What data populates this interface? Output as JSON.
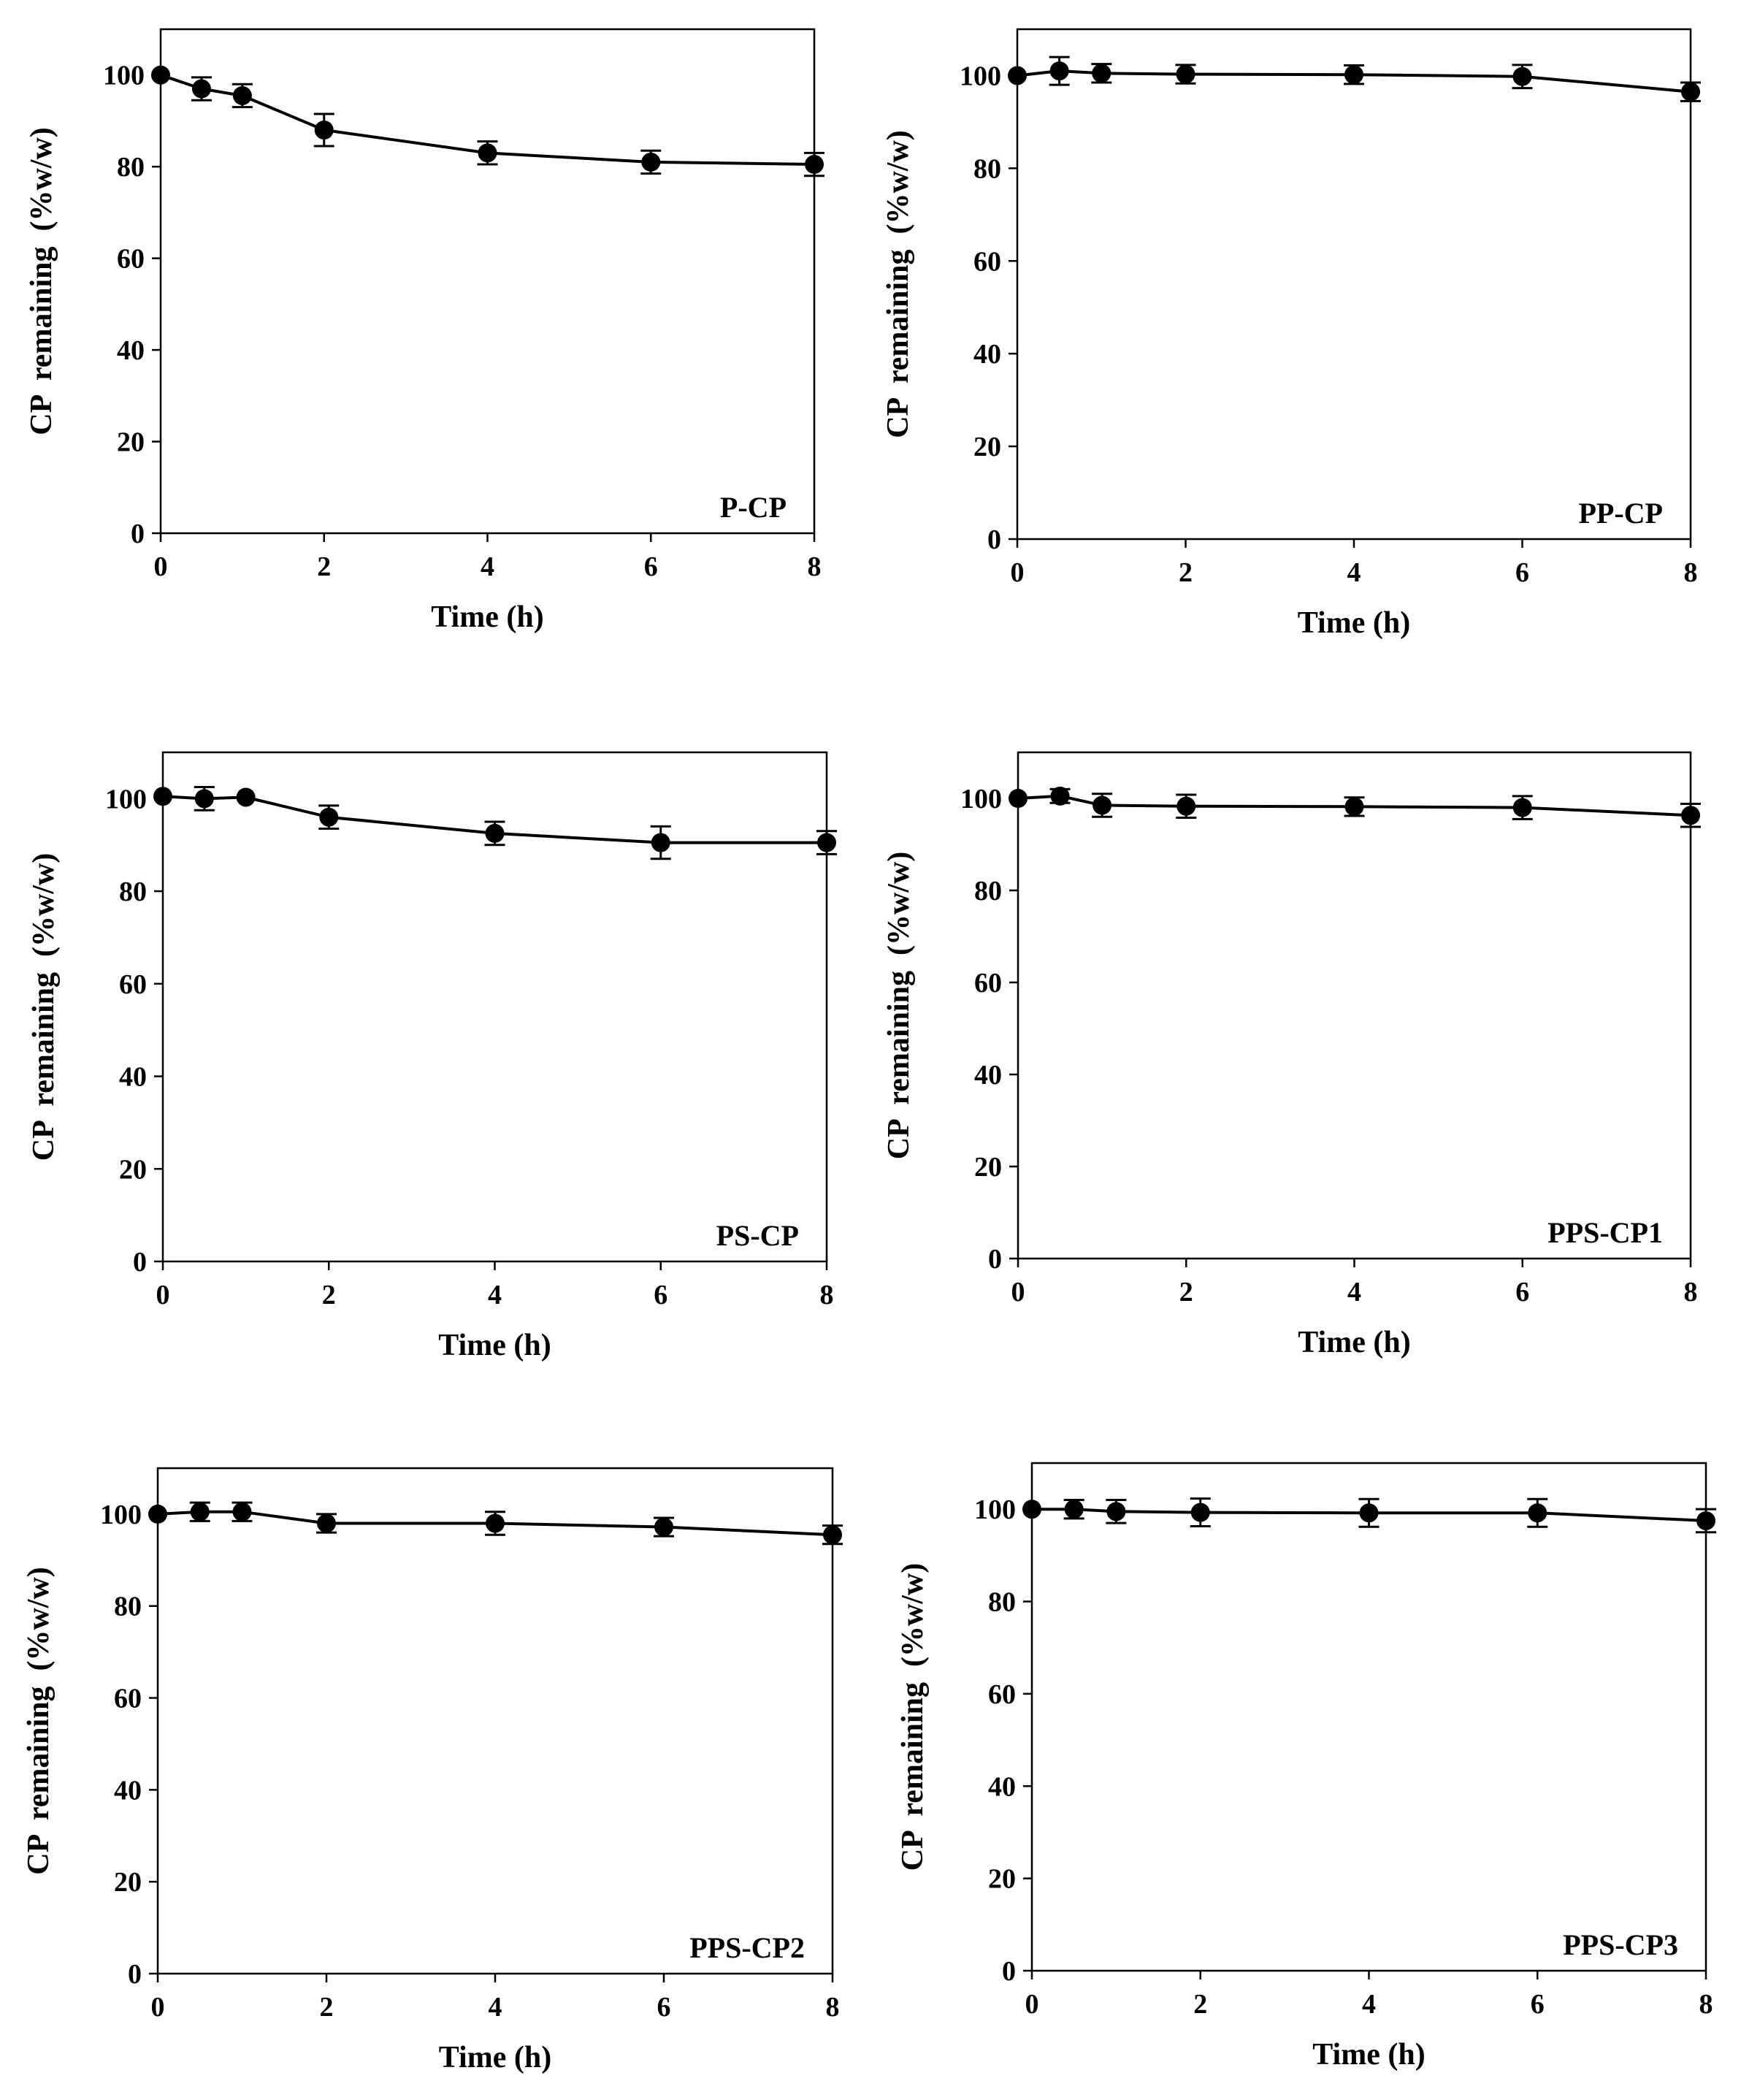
{
  "colors": {
    "line": "#000000",
    "marker": "#000000",
    "frame": "#000000",
    "background": "#ffffff"
  },
  "chart_data": [
    {
      "type": "line",
      "label": "P-CP",
      "xlabel": "Time (h)",
      "ylabel": "CP  remaining  (%w/w)",
      "xlim": [
        0,
        8
      ],
      "ylim": [
        0,
        110
      ],
      "xticks": [
        0,
        2,
        4,
        6,
        8
      ],
      "yticks": [
        0,
        20,
        40,
        60,
        80,
        100
      ],
      "x": [
        0,
        0.5,
        1,
        2,
        4,
        6,
        8
      ],
      "y": [
        100,
        97,
        95.5,
        88,
        83,
        81,
        80.5
      ],
      "error": [
        0.5,
        2.5,
        2.5,
        3.5,
        2.5,
        2.5,
        2.5
      ]
    },
    {
      "type": "line",
      "label": "PP-CP",
      "xlabel": "Time (h)",
      "ylabel": "CP  remaining  (%w/w)",
      "xlim": [
        0,
        8
      ],
      "ylim": [
        0,
        110
      ],
      "xticks": [
        0,
        2,
        4,
        6,
        8
      ],
      "yticks": [
        0,
        20,
        40,
        60,
        80,
        100
      ],
      "x": [
        0,
        0.5,
        1,
        2,
        4,
        6,
        8
      ],
      "y": [
        100,
        101,
        100.5,
        100.3,
        100.2,
        99.8,
        96.5
      ],
      "error": [
        0.5,
        3,
        2,
        2,
        2,
        2.5,
        2
      ]
    },
    {
      "type": "line",
      "label": "PS-CP",
      "xlabel": "Time (h)",
      "ylabel": "CP  remaining  (%w/w)",
      "xlim": [
        0,
        8
      ],
      "ylim": [
        0,
        110
      ],
      "xticks": [
        0,
        2,
        4,
        6,
        8
      ],
      "yticks": [
        0,
        20,
        40,
        60,
        80,
        100
      ],
      "x": [
        0,
        0.5,
        1,
        2,
        4,
        6,
        8
      ],
      "y": [
        100.5,
        100,
        100.3,
        96,
        92.5,
        90.5,
        90.5
      ],
      "error": [
        0.5,
        2.5,
        0.5,
        2.5,
        2.5,
        3.5,
        2.5
      ]
    },
    {
      "type": "line",
      "label": "PPS-CP1",
      "xlabel": "Time (h)",
      "ylabel": "CP  remaining  (%w/w)",
      "xlim": [
        0,
        8
      ],
      "ylim": [
        0,
        110
      ],
      "xticks": [
        0,
        2,
        4,
        6,
        8
      ],
      "yticks": [
        0,
        20,
        40,
        60,
        80,
        100
      ],
      "x": [
        0,
        0.5,
        1,
        2,
        4,
        6,
        8
      ],
      "y": [
        100,
        100.5,
        98.5,
        98.3,
        98.2,
        98,
        96.3
      ],
      "error": [
        0.5,
        1.5,
        2.5,
        2.5,
        2,
        2.5,
        2.5
      ]
    },
    {
      "type": "line",
      "label": "PPS-CP2",
      "xlabel": "Time (h)",
      "ylabel": "CP  remaining  (%w/w)",
      "xlim": [
        0,
        8
      ],
      "ylim": [
        0,
        110
      ],
      "xticks": [
        0,
        2,
        4,
        6,
        8
      ],
      "yticks": [
        0,
        20,
        40,
        60,
        80,
        100
      ],
      "x": [
        0,
        0.5,
        1,
        2,
        4,
        6,
        8
      ],
      "y": [
        100,
        100.5,
        100.5,
        98,
        98,
        97.2,
        95.5
      ],
      "error": [
        0.5,
        2,
        2,
        2,
        2.5,
        2,
        2
      ]
    },
    {
      "type": "line",
      "label": "PPS-CP3",
      "xlabel": "Time (h)",
      "ylabel": "CP  remaining  (%w/w)",
      "xlim": [
        0,
        8
      ],
      "ylim": [
        0,
        110
      ],
      "xticks": [
        0,
        2,
        4,
        6,
        8
      ],
      "yticks": [
        0,
        20,
        40,
        60,
        80,
        100
      ],
      "x": [
        0,
        0.5,
        1,
        2,
        4,
        6,
        8
      ],
      "y": [
        100,
        100,
        99.5,
        99.3,
        99.2,
        99.2,
        97.5
      ],
      "error": [
        0.5,
        2,
        2.5,
        3,
        3,
        3,
        2.5
      ]
    }
  ]
}
